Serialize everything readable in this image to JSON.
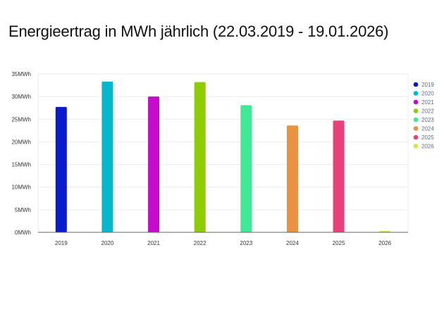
{
  "chart_data": {
    "type": "bar",
    "title": "Energieertrag in MWh jährlich (22.03.2019 - 19.01.2026)",
    "categories": [
      "2019",
      "2020",
      "2021",
      "2022",
      "2023",
      "2024",
      "2025",
      "2026"
    ],
    "values": [
      27.7,
      33.3,
      30.0,
      33.2,
      28.1,
      23.6,
      24.7,
      0.3
    ],
    "colors": [
      "#0a1bcc",
      "#07b8cc",
      "#c50bcc",
      "#8ecb08",
      "#42e895",
      "#e89242",
      "#e8417a",
      "#d3e83f"
    ],
    "unit": "MWh",
    "ylim": [
      0,
      35
    ],
    "yticks": [
      "0MWh",
      "5MWh",
      "10MWh",
      "15MWh",
      "20MWh",
      "25MWh",
      "30MWh",
      "35MWh"
    ],
    "legend": [
      "2019",
      "2020",
      "2021",
      "2022",
      "2023",
      "2024",
      "2025",
      "2026"
    ],
    "legend_position": "right",
    "grid": true
  }
}
